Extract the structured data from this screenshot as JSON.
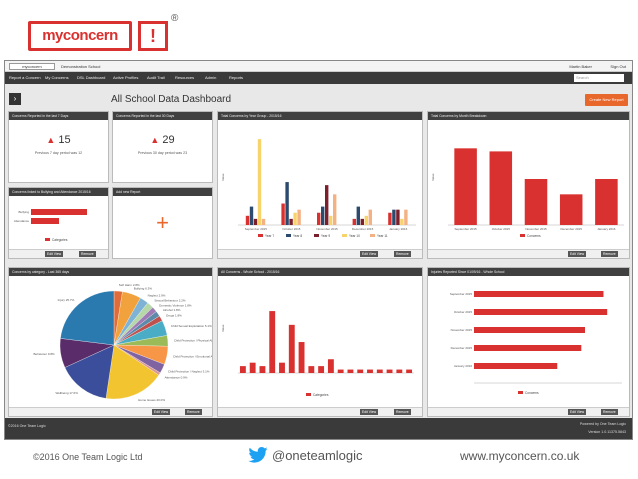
{
  "brand": {
    "logo_word": "myconcern",
    "logo_mark": "!",
    "registered": "®",
    "accent": "#d8312f"
  },
  "topbar": {
    "logo": "myconcern",
    "school": "Demonstration School",
    "user": "Martin Baker",
    "signout": "Sign Out"
  },
  "nav": {
    "items": [
      "Report a Concern",
      "My Concerns",
      "DSL Dashboard",
      "Active Profiles",
      "Audit Trail",
      "Resources",
      "Admin",
      "Reports"
    ],
    "search_placeholder": "Search"
  },
  "dashboard": {
    "title": "All School Data Dashboard",
    "new_report": "Create New Report"
  },
  "panels": {
    "c7": {
      "title": "Concerns Reported in the last 7 Days",
      "value": "15",
      "sub": "Previous 7 day period was 12"
    },
    "c30": {
      "title": "Concerns Reported in the last 30 Days",
      "value": "29",
      "sub": "Previous 30 day period was 23"
    },
    "bully": {
      "title": "Concerns linked to Bullying and Attendance 2015/16",
      "legend": "Categories",
      "chart_data": {
        "type": "bar",
        "orientation": "horizontal",
        "categories": [
          "Bullying",
          "Attendance"
        ],
        "values": [
          80,
          40
        ],
        "xlim": [
          0,
          100
        ]
      }
    },
    "addnew": {
      "title": "Add new Report",
      "plus": "+"
    },
    "yeargroup": {
      "title": "Total Concerns by Year Group - 2015/16",
      "chart_data": {
        "type": "bar",
        "ylabel": "Value",
        "categories": [
          "September 2015",
          "October 2015",
          "November 2015",
          "December 2015",
          "January 2016"
        ],
        "series": [
          {
            "name": "Year 7",
            "values": [
              3,
              7,
              4,
              2,
              4
            ],
            "color": "#d8312f"
          },
          {
            "name": "Year 8",
            "values": [
              6,
              14,
              6,
              6,
              5
            ],
            "color": "#2c4a6e"
          },
          {
            "name": "Year 9",
            "values": [
              2,
              2,
              13,
              2,
              5
            ],
            "color": "#7a1f2b"
          },
          {
            "name": "Year 10",
            "values": [
              28,
              4,
              3,
              3,
              2
            ],
            "color": "#f6d46b"
          },
          {
            "name": "Year 11",
            "values": [
              2,
              5,
              10,
              5,
              5
            ],
            "color": "#f4b183"
          }
        ]
      }
    },
    "month": {
      "title": "Total Concerns by Month Breakdown",
      "chart_data": {
        "type": "bar",
        "ylabel": "Value",
        "categories": [
          "September 2015",
          "October 2015",
          "November 2015",
          "December 2015",
          "January 2016"
        ],
        "series": [
          {
            "name": "Concerns",
            "values": [
              50,
              48,
              30,
              20,
              30
            ],
            "color": "#d8312f"
          }
        ],
        "ylim": [
          0,
          60
        ]
      }
    },
    "category": {
      "title": "Concerns by category - Last 365 days",
      "chart_data": {
        "type": "pie",
        "labels": [
          "Self Harm 2.8%",
          "Bullying 6.3%",
          "Neglect 2.9%",
          "Sexual Behaviour 2.2%",
          "Domestic Violence 1.8%",
          "Alcohol 1.8%",
          "Drugs 1.8%",
          "Child Sexual Exploitation 5.1%",
          "Child Protection / Physical Abuse 3.6%",
          "Child Protection / Emotional Abuse 6.1%",
          "Child Protection / Neglect 3.1%",
          "Attendance 0.9%",
          "Home Issues 20.0%",
          "Wellbeing 17.6%",
          "Behaviour 9.8%",
          "Injury 25.7%"
        ],
        "values": [
          2.8,
          6.3,
          2.9,
          2.2,
          1.8,
          1.8,
          1.8,
          5.1,
          3.6,
          6.1,
          3.1,
          0.9,
          20.0,
          17.6,
          9.8,
          25.7
        ],
        "colors": [
          "#e06c3a",
          "#f2a23c",
          "#7fb3d5",
          "#b6d7a8",
          "#9e7bb5",
          "#5d8aa8",
          "#c0504d",
          "#4bacc6",
          "#9bbb59",
          "#f79646",
          "#8064a2",
          "#d99694",
          "#f2c530",
          "#3b4e9b",
          "#5a2c6a",
          "#2a7ab0"
        ]
      }
    },
    "whole": {
      "title": "All Concerns - Whole School - 2015/16",
      "legend": "Categories",
      "chart_data": {
        "type": "bar",
        "ylabel": "Value",
        "values": [
          2,
          3,
          2,
          18,
          3,
          14,
          9,
          2,
          2,
          4,
          1,
          1,
          1,
          1,
          1,
          1,
          1,
          1
        ],
        "color": "#d8312f",
        "ylim": [
          0,
          25
        ]
      }
    },
    "injuries": {
      "title": "Injuries Reported Since 01/09/16 - Whole School",
      "chart_data": {
        "type": "bar",
        "orientation": "horizontal",
        "categories": [
          "September 2015",
          "October 2015",
          "November 2015",
          "December 2015",
          "January 2016"
        ],
        "values": [
          70,
          72,
          60,
          58,
          45
        ],
        "legend": "Concerns",
        "color": "#d8312f",
        "xlim": [
          0,
          80
        ]
      }
    }
  },
  "buttons": {
    "edit": "Edit View",
    "remove": "Remove"
  },
  "screen_footer": {
    "left": "©2016 One Team Logic",
    "right1": "Powered by One Team Logic",
    "right2": "Version 1.0.11375.5843"
  },
  "footer": {
    "copyright": "©2016 One Team Logic Ltd",
    "twitter": "@oneteamlogic",
    "website": "www.myconcern.co.uk"
  }
}
